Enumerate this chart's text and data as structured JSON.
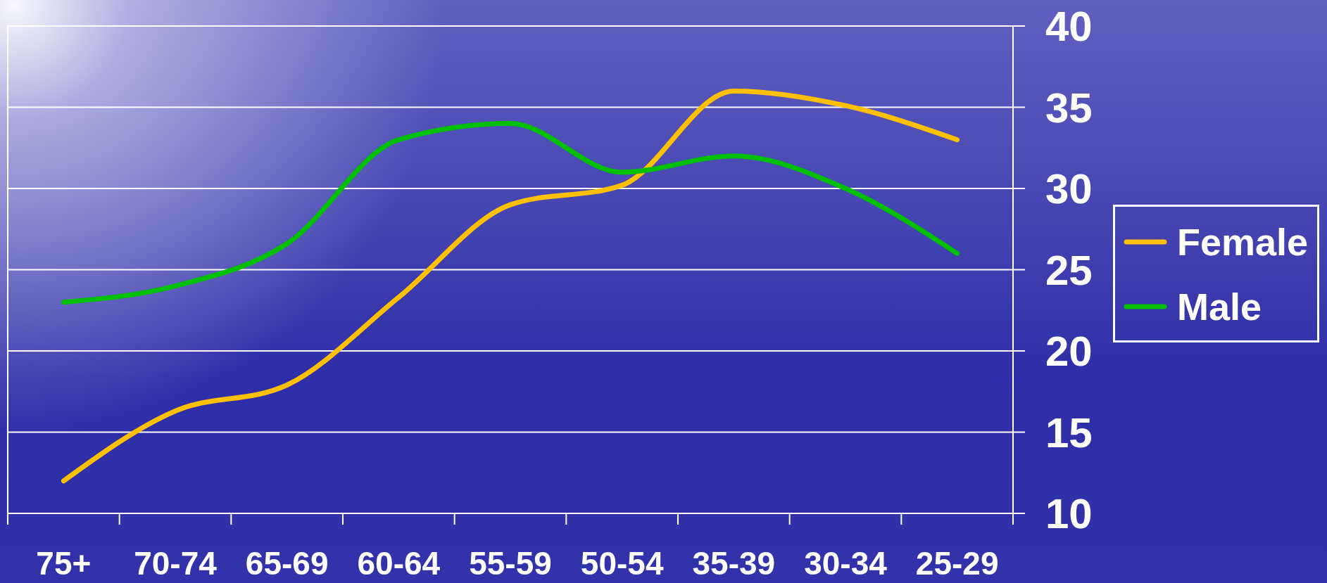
{
  "chart_data": {
    "type": "line",
    "categories": [
      "75+",
      "70-74",
      "65-69",
      "60-64",
      "55-59",
      "50-54",
      "35-39",
      "30-34",
      "25-29"
    ],
    "series": [
      {
        "name": "Female",
        "color": "#ffc000",
        "values": [
          12,
          16.3,
          17.9,
          23.3,
          29,
          30.2,
          36,
          35.1,
          33
        ]
      },
      {
        "name": "Male",
        "color": "#00c000",
        "values": [
          23,
          24,
          26.6,
          33,
          34,
          31,
          32,
          30,
          26
        ]
      }
    ],
    "ylim": [
      10,
      40
    ],
    "yticks": [
      10,
      15,
      20,
      25,
      30,
      35,
      40
    ],
    "grid": "y",
    "legend": "right"
  }
}
